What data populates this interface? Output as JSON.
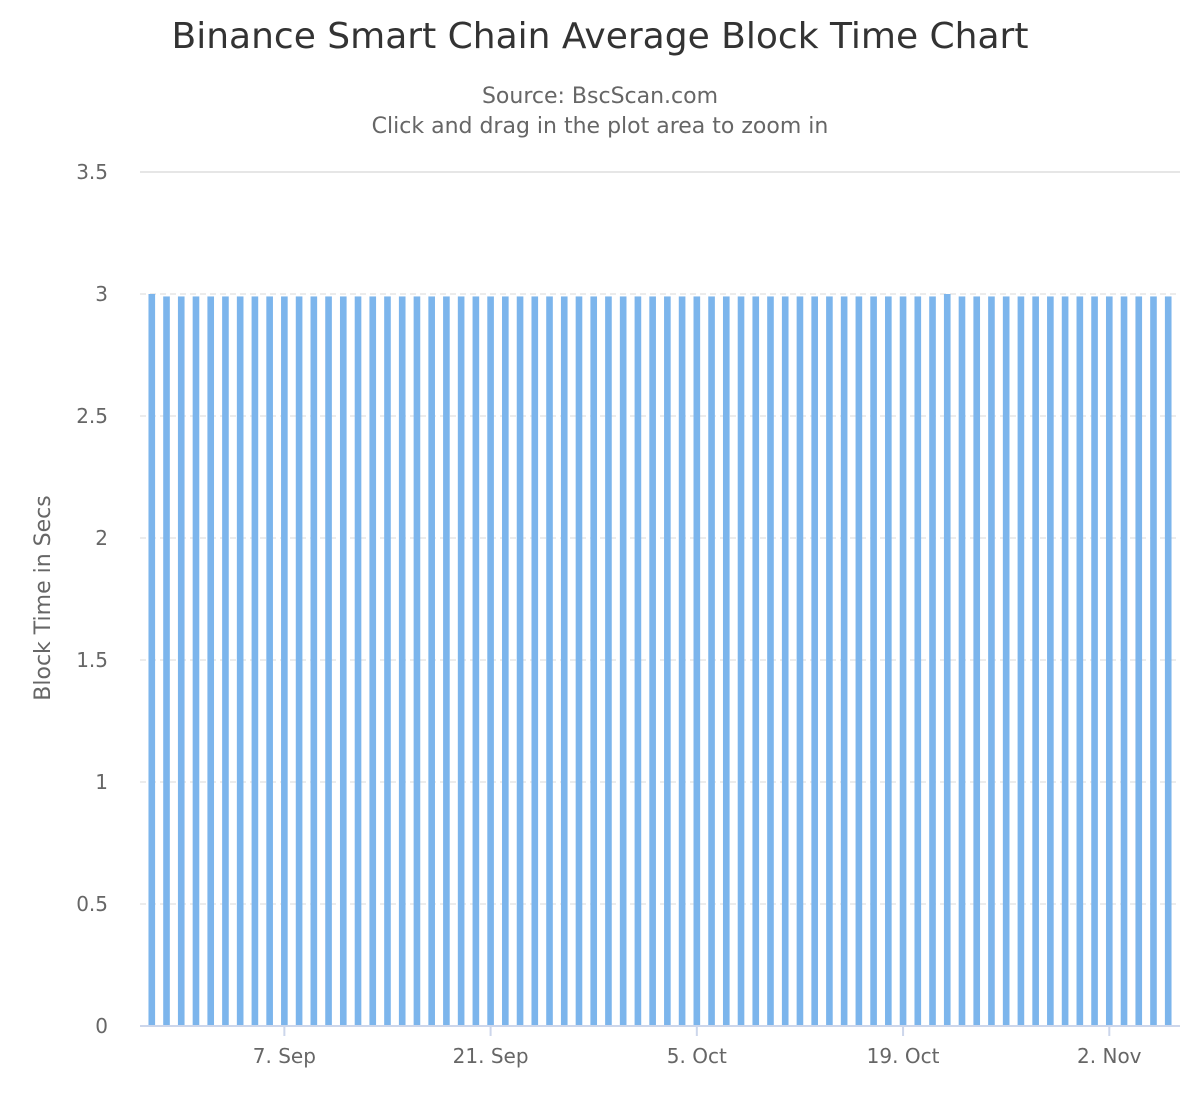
{
  "chart_data": {
    "type": "bar",
    "title": "Binance Smart Chain Average Block Time Chart",
    "subtitle_lines": [
      "Source: BscScan.com",
      "Click and drag in the plot area to zoom in"
    ],
    "xlabel": "",
    "ylabel": "Block Time in Secs",
    "ylim": [
      0,
      3.5
    ],
    "y_ticks": [
      "0",
      "0.5",
      "1",
      "1.5",
      "2",
      "2.5",
      "3",
      "3.5"
    ],
    "x_start_date": "2021-08-29",
    "x_ticks": [
      {
        "label": "7. Sep",
        "date": "2021-09-07"
      },
      {
        "label": "21. Sep",
        "date": "2021-09-21"
      },
      {
        "label": "5. Oct",
        "date": "2021-10-05"
      },
      {
        "label": "19. Oct",
        "date": "2021-10-19"
      },
      {
        "label": "2. Nov",
        "date": "2021-11-02"
      }
    ],
    "values": [
      3.0,
      2.99,
      2.99,
      2.99,
      2.99,
      2.99,
      2.99,
      2.99,
      2.99,
      2.99,
      2.99,
      2.99,
      2.99,
      2.99,
      2.99,
      2.99,
      2.99,
      2.99,
      2.99,
      2.99,
      2.99,
      2.99,
      2.99,
      2.99,
      2.99,
      2.99,
      2.99,
      2.99,
      2.99,
      2.99,
      2.99,
      2.99,
      2.99,
      2.99,
      2.99,
      2.99,
      2.99,
      2.99,
      2.99,
      2.99,
      2.99,
      2.99,
      2.99,
      2.99,
      2.99,
      2.99,
      2.99,
      2.99,
      2.99,
      2.99,
      2.99,
      2.99,
      2.99,
      2.99,
      3.0,
      2.99,
      2.99,
      2.99,
      2.99,
      2.99,
      2.99,
      2.99,
      2.99,
      2.99,
      2.99,
      2.99,
      2.99,
      2.99,
      2.99,
      2.99
    ],
    "grid": true,
    "legend": "none",
    "bar_color": "#7cb5ec",
    "grid_color": "#e6e6e6",
    "axis_color": "#ccd6eb"
  }
}
